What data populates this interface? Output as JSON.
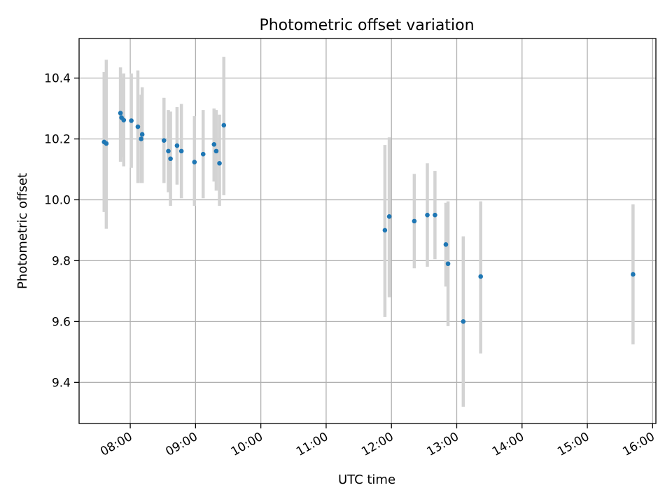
{
  "chart_data": {
    "type": "scatter",
    "title": "Photometric offset variation",
    "xlabel": "UTC time",
    "ylabel": "Photometric offset",
    "x_axis_type": "time",
    "xlim": [
      "07:13",
      "16:03"
    ],
    "ylim": [
      9.265,
      10.53
    ],
    "x_ticks": [
      "08:00",
      "09:00",
      "10:00",
      "11:00",
      "12:00",
      "13:00",
      "14:00",
      "15:00",
      "16:00"
    ],
    "y_ticks": [
      9.4,
      9.6,
      9.8,
      10.0,
      10.2,
      10.4
    ],
    "y_tick_labels": [
      "9.4",
      "9.6",
      "9.8",
      "10.0",
      "10.2",
      "10.4"
    ],
    "grid": true,
    "legend": false,
    "colors": {
      "points": "#1f77b4",
      "error_bars": "#d3d3d3",
      "grid": "#b0b0b0"
    },
    "points": [
      {
        "x": "07:36",
        "y": 10.19,
        "ylow": 9.96,
        "yhigh": 10.42
      },
      {
        "x": "07:38",
        "y": 10.185,
        "ylow": 9.905,
        "yhigh": 10.46
      },
      {
        "x": "07:51",
        "y": 10.285,
        "ylow": 10.125,
        "yhigh": 10.435
      },
      {
        "x": "07:52",
        "y": 10.27,
        "ylow": 10.14,
        "yhigh": 10.4
      },
      {
        "x": "07:54",
        "y": 10.262,
        "ylow": 10.11,
        "yhigh": 10.415
      },
      {
        "x": "08:01",
        "y": 10.26,
        "ylow": 10.105,
        "yhigh": 10.415
      },
      {
        "x": "08:07",
        "y": 10.24,
        "ylow": 10.055,
        "yhigh": 10.425
      },
      {
        "x": "08:10",
        "y": 10.2,
        "ylow": 10.055,
        "yhigh": 10.345
      },
      {
        "x": "08:11",
        "y": 10.215,
        "ylow": 10.055,
        "yhigh": 10.37
      },
      {
        "x": "08:31",
        "y": 10.195,
        "ylow": 10.055,
        "yhigh": 10.335
      },
      {
        "x": "08:35",
        "y": 10.16,
        "ylow": 10.025,
        "yhigh": 10.295
      },
      {
        "x": "08:37",
        "y": 10.135,
        "ylow": 9.98,
        "yhigh": 10.29
      },
      {
        "x": "08:43",
        "y": 10.178,
        "ylow": 10.05,
        "yhigh": 10.305
      },
      {
        "x": "08:47",
        "y": 10.16,
        "ylow": 10.005,
        "yhigh": 10.315
      },
      {
        "x": "08:59",
        "y": 10.124,
        "ylow": 9.98,
        "yhigh": 10.275
      },
      {
        "x": "09:07",
        "y": 10.15,
        "ylow": 10.005,
        "yhigh": 10.295
      },
      {
        "x": "09:17",
        "y": 10.182,
        "ylow": 10.06,
        "yhigh": 10.3
      },
      {
        "x": "09:19",
        "y": 10.16,
        "ylow": 10.03,
        "yhigh": 10.295
      },
      {
        "x": "09:22",
        "y": 10.12,
        "ylow": 9.98,
        "yhigh": 10.28
      },
      {
        "x": "09:26",
        "y": 10.245,
        "ylow": 10.015,
        "yhigh": 10.47
      },
      {
        "x": "11:54",
        "y": 9.9,
        "ylow": 9.615,
        "yhigh": 10.18
      },
      {
        "x": "11:58",
        "y": 9.945,
        "ylow": 9.68,
        "yhigh": 10.205
      },
      {
        "x": "12:21",
        "y": 9.93,
        "ylow": 9.775,
        "yhigh": 10.085
      },
      {
        "x": "12:33",
        "y": 9.95,
        "ylow": 9.78,
        "yhigh": 10.12
      },
      {
        "x": "12:40",
        "y": 9.95,
        "ylow": 9.805,
        "yhigh": 10.095
      },
      {
        "x": "12:50",
        "y": 9.853,
        "ylow": 9.715,
        "yhigh": 9.99
      },
      {
        "x": "12:52",
        "y": 9.79,
        "ylow": 9.585,
        "yhigh": 9.995
      },
      {
        "x": "13:06",
        "y": 9.6,
        "ylow": 9.32,
        "yhigh": 9.88
      },
      {
        "x": "13:22",
        "y": 9.748,
        "ylow": 9.495,
        "yhigh": 9.995
      },
      {
        "x": "15:42",
        "y": 9.755,
        "ylow": 9.525,
        "yhigh": 9.985
      }
    ]
  }
}
